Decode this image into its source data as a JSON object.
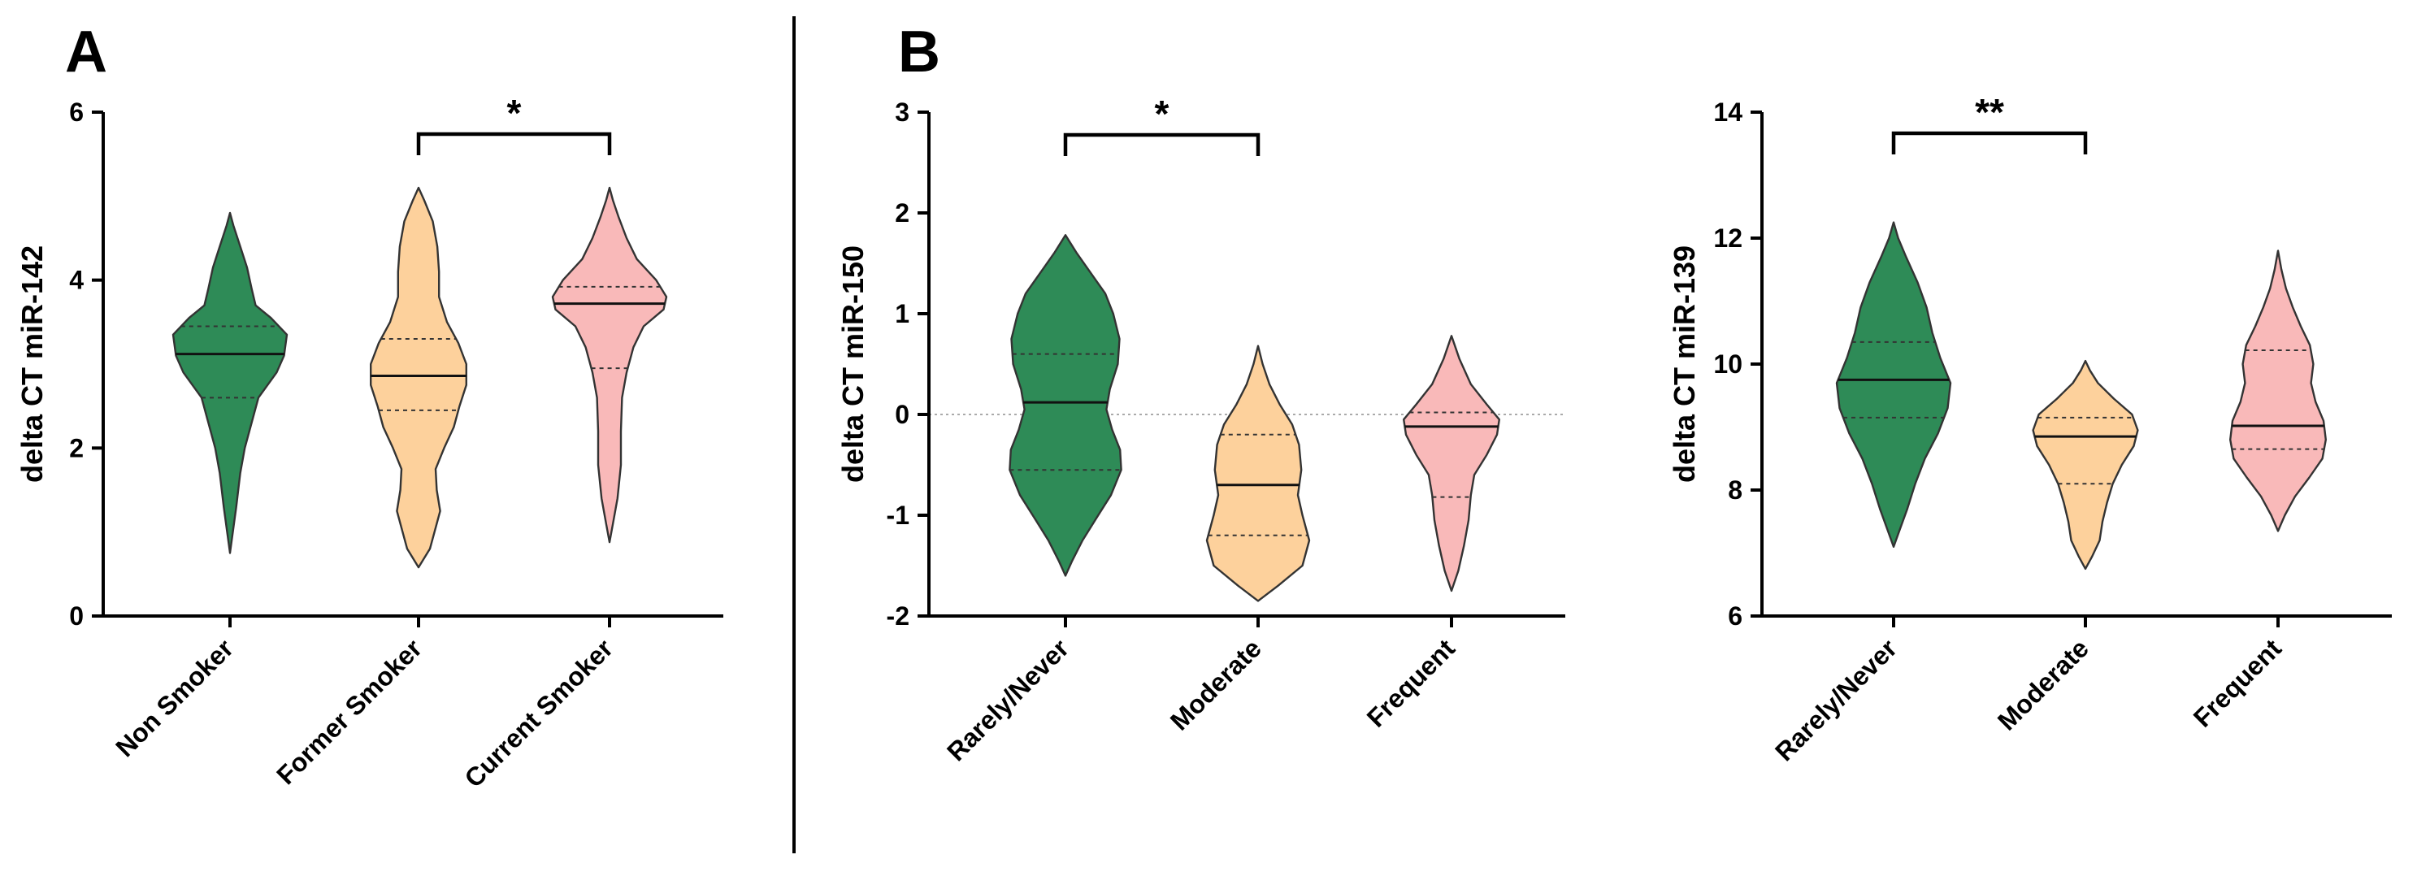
{
  "figure": {
    "panel_letters": [
      "A",
      "B"
    ]
  },
  "colors": {
    "green": "#2e8b57",
    "orange": "#fdd19c",
    "pink": "#f9b9b9"
  },
  "chart_data": [
    {
      "id": "mir142",
      "type": "violin",
      "ylabel": "delta CT miR-142",
      "ylim": [
        0,
        6
      ],
      "yticks": [
        0,
        2,
        4,
        6
      ],
      "categories": [
        "Non Smoker",
        "Former Smoker",
        "Current Smoker"
      ],
      "significance": [
        {
          "from": 1,
          "to": 2,
          "label": "*"
        }
      ],
      "zero_line": false,
      "series": [
        {
          "name": "Non Smoker",
          "color": "green",
          "min": 0.75,
          "max": 4.8,
          "median": 3.12,
          "q1": 2.6,
          "q3": 3.45,
          "density": [
            [
              0.75,
              0.0
            ],
            [
              1.0,
              0.05
            ],
            [
              1.3,
              0.11
            ],
            [
              1.7,
              0.18
            ],
            [
              2.0,
              0.26
            ],
            [
              2.3,
              0.38
            ],
            [
              2.6,
              0.5
            ],
            [
              2.9,
              0.82
            ],
            [
              3.1,
              0.95
            ],
            [
              3.35,
              1.0
            ],
            [
              3.55,
              0.72
            ],
            [
              3.7,
              0.45
            ],
            [
              3.9,
              0.38
            ],
            [
              4.15,
              0.3
            ],
            [
              4.4,
              0.18
            ],
            [
              4.65,
              0.06
            ],
            [
              4.8,
              0.0
            ]
          ]
        },
        {
          "name": "Former Smoker",
          "color": "orange",
          "min": 0.58,
          "max": 5.1,
          "median": 2.86,
          "q1": 2.45,
          "q3": 3.3,
          "density": [
            [
              0.58,
              0.0
            ],
            [
              0.8,
              0.2
            ],
            [
              1.0,
              0.28
            ],
            [
              1.25,
              0.38
            ],
            [
              1.5,
              0.32
            ],
            [
              1.75,
              0.3
            ],
            [
              2.0,
              0.45
            ],
            [
              2.25,
              0.62
            ],
            [
              2.5,
              0.72
            ],
            [
              2.75,
              0.84
            ],
            [
              3.0,
              0.84
            ],
            [
              3.25,
              0.7
            ],
            [
              3.5,
              0.5
            ],
            [
              3.8,
              0.36
            ],
            [
              4.1,
              0.36
            ],
            [
              4.4,
              0.33
            ],
            [
              4.7,
              0.25
            ],
            [
              4.95,
              0.1
            ],
            [
              5.1,
              0.0
            ]
          ]
        },
        {
          "name": "Current Smoker",
          "color": "pink",
          "min": 0.88,
          "max": 5.1,
          "median": 3.72,
          "q1": 2.95,
          "q3": 3.92,
          "density": [
            [
              0.88,
              0.0
            ],
            [
              1.1,
              0.06
            ],
            [
              1.4,
              0.14
            ],
            [
              1.8,
              0.2
            ],
            [
              2.2,
              0.2
            ],
            [
              2.6,
              0.22
            ],
            [
              2.9,
              0.3
            ],
            [
              3.2,
              0.42
            ],
            [
              3.45,
              0.6
            ],
            [
              3.65,
              0.95
            ],
            [
              3.8,
              1.0
            ],
            [
              4.0,
              0.82
            ],
            [
              4.25,
              0.48
            ],
            [
              4.5,
              0.3
            ],
            [
              4.75,
              0.16
            ],
            [
              4.95,
              0.06
            ],
            [
              5.1,
              0.0
            ]
          ]
        }
      ]
    },
    {
      "id": "mir150",
      "type": "violin",
      "ylabel": "delta CT miR-150",
      "ylim": [
        -2,
        3
      ],
      "yticks": [
        -2,
        -1,
        0,
        1,
        2,
        3
      ],
      "categories": [
        "Rarely/Never",
        "Moderate",
        "Frequent"
      ],
      "significance": [
        {
          "from": 0,
          "to": 1,
          "label": "*"
        }
      ],
      "zero_line": true,
      "series": [
        {
          "name": "Rarely/Never",
          "color": "green",
          "min": -1.6,
          "max": 1.78,
          "median": 0.12,
          "q1": -0.55,
          "q3": 0.6,
          "density": [
            [
              -1.6,
              0.0
            ],
            [
              -1.45,
              0.12
            ],
            [
              -1.25,
              0.3
            ],
            [
              -1.05,
              0.52
            ],
            [
              -0.8,
              0.8
            ],
            [
              -0.55,
              0.98
            ],
            [
              -0.35,
              0.96
            ],
            [
              -0.15,
              0.82
            ],
            [
              0.05,
              0.72
            ],
            [
              0.25,
              0.78
            ],
            [
              0.5,
              0.92
            ],
            [
              0.75,
              0.95
            ],
            [
              1.0,
              0.84
            ],
            [
              1.2,
              0.7
            ],
            [
              1.4,
              0.45
            ],
            [
              1.6,
              0.2
            ],
            [
              1.78,
              0.0
            ]
          ]
        },
        {
          "name": "Moderate",
          "color": "orange",
          "min": -1.85,
          "max": 0.68,
          "median": -0.7,
          "q1": -1.2,
          "q3": -0.2,
          "density": [
            [
              -1.85,
              0.0
            ],
            [
              -1.7,
              0.35
            ],
            [
              -1.5,
              0.78
            ],
            [
              -1.25,
              0.9
            ],
            [
              -1.0,
              0.78
            ],
            [
              -0.8,
              0.7
            ],
            [
              -0.55,
              0.76
            ],
            [
              -0.3,
              0.72
            ],
            [
              -0.1,
              0.6
            ],
            [
              0.1,
              0.38
            ],
            [
              0.3,
              0.2
            ],
            [
              0.5,
              0.08
            ],
            [
              0.68,
              0.0
            ]
          ]
        },
        {
          "name": "Frequent",
          "color": "pink",
          "min": -1.75,
          "max": 0.78,
          "median": -0.12,
          "q1": -0.82,
          "q3": 0.02,
          "density": [
            [
              -1.75,
              0.0
            ],
            [
              -1.55,
              0.12
            ],
            [
              -1.3,
              0.22
            ],
            [
              -1.05,
              0.3
            ],
            [
              -0.8,
              0.34
            ],
            [
              -0.6,
              0.4
            ],
            [
              -0.4,
              0.62
            ],
            [
              -0.2,
              0.8
            ],
            [
              -0.05,
              0.84
            ],
            [
              0.1,
              0.62
            ],
            [
              0.3,
              0.34
            ],
            [
              0.55,
              0.14
            ],
            [
              0.78,
              0.0
            ]
          ]
        }
      ]
    },
    {
      "id": "mir139",
      "type": "violin",
      "ylabel": "delta CT miR-139",
      "ylim": [
        6,
        14
      ],
      "yticks": [
        6,
        8,
        10,
        12,
        14
      ],
      "categories": [
        "Rarely/Never",
        "Moderate",
        "Frequent"
      ],
      "significance": [
        {
          "from": 0,
          "to": 1,
          "label": "**"
        }
      ],
      "zero_line": false,
      "series": [
        {
          "name": "Rarely/Never",
          "color": "green",
          "min": 7.1,
          "max": 12.25,
          "median": 9.75,
          "q1": 9.15,
          "q3": 10.35,
          "density": [
            [
              7.1,
              0.0
            ],
            [
              7.35,
              0.1
            ],
            [
              7.7,
              0.24
            ],
            [
              8.1,
              0.38
            ],
            [
              8.5,
              0.55
            ],
            [
              8.9,
              0.78
            ],
            [
              9.3,
              0.95
            ],
            [
              9.7,
              1.0
            ],
            [
              10.1,
              0.82
            ],
            [
              10.5,
              0.68
            ],
            [
              10.9,
              0.58
            ],
            [
              11.3,
              0.42
            ],
            [
              11.7,
              0.22
            ],
            [
              12.0,
              0.08
            ],
            [
              12.25,
              0.0
            ]
          ]
        },
        {
          "name": "Moderate",
          "color": "orange",
          "min": 6.75,
          "max": 10.05,
          "median": 8.85,
          "q1": 8.1,
          "q3": 9.15,
          "density": [
            [
              6.75,
              0.0
            ],
            [
              6.95,
              0.12
            ],
            [
              7.2,
              0.25
            ],
            [
              7.5,
              0.3
            ],
            [
              7.8,
              0.38
            ],
            [
              8.1,
              0.48
            ],
            [
              8.4,
              0.64
            ],
            [
              8.7,
              0.85
            ],
            [
              8.95,
              0.92
            ],
            [
              9.2,
              0.82
            ],
            [
              9.45,
              0.5
            ],
            [
              9.7,
              0.22
            ],
            [
              9.9,
              0.08
            ],
            [
              10.05,
              0.0
            ]
          ]
        },
        {
          "name": "Frequent",
          "color": "pink",
          "min": 7.35,
          "max": 11.8,
          "median": 9.02,
          "q1": 8.65,
          "q3": 10.22,
          "density": [
            [
              7.35,
              0.0
            ],
            [
              7.6,
              0.12
            ],
            [
              7.9,
              0.3
            ],
            [
              8.2,
              0.55
            ],
            [
              8.5,
              0.78
            ],
            [
              8.8,
              0.84
            ],
            [
              9.1,
              0.8
            ],
            [
              9.4,
              0.66
            ],
            [
              9.7,
              0.58
            ],
            [
              10.0,
              0.62
            ],
            [
              10.3,
              0.56
            ],
            [
              10.6,
              0.4
            ],
            [
              10.9,
              0.26
            ],
            [
              11.2,
              0.14
            ],
            [
              11.5,
              0.06
            ],
            [
              11.8,
              0.0
            ]
          ]
        }
      ]
    }
  ]
}
